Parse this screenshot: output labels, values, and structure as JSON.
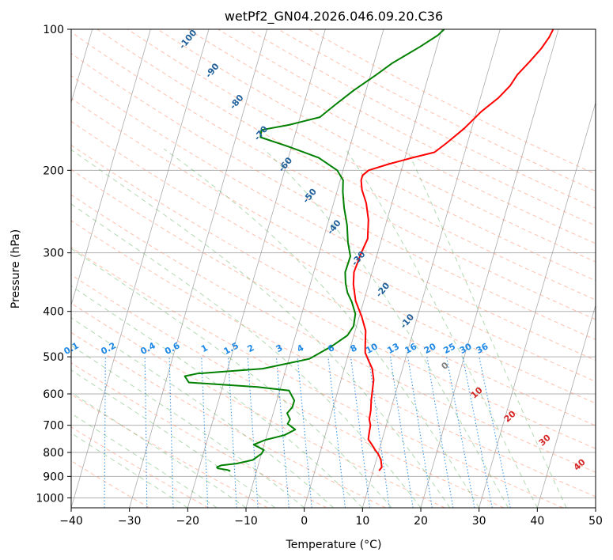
{
  "chart_data": {
    "type": "line",
    "title": "wetPf2_GN04.2026.046.09.20.C36",
    "xlabel": "Temperature (°C)",
    "ylabel": "Pressure (hPa)",
    "xlim": [
      -40,
      50
    ],
    "ylim": [
      1050,
      100
    ],
    "y_scale": "log",
    "grid": true,
    "x_ticks": [
      -40,
      -30,
      -20,
      -10,
      0,
      10,
      20,
      30,
      40,
      50
    ],
    "x_tick_labels": [
      "−40",
      "−30",
      "−20",
      "−10",
      "0",
      "10",
      "20",
      "30",
      "40",
      "50"
    ],
    "y_ticks": [
      100,
      200,
      300,
      400,
      500,
      600,
      700,
      800,
      900,
      1000
    ],
    "y_tick_labels": [
      "100",
      "200",
      "300",
      "400",
      "500",
      "600",
      "700",
      "800",
      "900",
      "1000"
    ],
    "series": [
      {
        "role": "temperature",
        "color": "#ff0000",
        "points": [
          [
            11,
            875
          ],
          [
            11.3,
            860
          ],
          [
            10.8,
            830
          ],
          [
            10,
            805
          ],
          [
            9.3,
            790
          ],
          [
            8.5,
            770
          ],
          [
            7.6,
            750
          ],
          [
            7.4,
            720
          ],
          [
            7.3,
            700
          ],
          [
            6.8,
            680
          ],
          [
            6.6,
            650
          ],
          [
            6.2,
            620
          ],
          [
            5.9,
            590
          ],
          [
            5.6,
            560
          ],
          [
            4.8,
            530
          ],
          [
            3.8,
            510
          ],
          [
            2.8,
            490
          ],
          [
            2.4,
            470
          ],
          [
            1.8,
            440
          ],
          [
            0.4,
            410
          ],
          [
            -1.4,
            380
          ],
          [
            -2.6,
            350
          ],
          [
            -3.1,
            330
          ],
          [
            -2.8,
            300
          ],
          [
            -2.4,
            280
          ],
          [
            -3.2,
            255
          ],
          [
            -4.4,
            235
          ],
          [
            -5.8,
            220
          ],
          [
            -6.4,
            210
          ],
          [
            -6.4,
            205
          ],
          [
            -5.6,
            200
          ],
          [
            -2.5,
            194
          ],
          [
            1.3,
            188
          ],
          [
            4.8,
            183
          ],
          [
            6.4,
            175
          ],
          [
            8.7,
            163
          ],
          [
            10.8,
            150
          ],
          [
            13.1,
            140
          ],
          [
            14.5,
            132
          ],
          [
            15.2,
            125
          ],
          [
            16.7,
            117
          ],
          [
            18,
            110
          ],
          [
            18.8,
            104
          ],
          [
            19.1,
            100
          ]
        ]
      },
      {
        "role": "dewpoint",
        "color": "#008000",
        "points": [
          [
            -14.5,
            877
          ],
          [
            -15,
            872
          ],
          [
            -16.8,
            865
          ],
          [
            -17,
            860
          ],
          [
            -16.3,
            852
          ],
          [
            -13.8,
            845
          ],
          [
            -11.2,
            830
          ],
          [
            -10,
            805
          ],
          [
            -9.8,
            790
          ],
          [
            -11.8,
            770
          ],
          [
            -10,
            752
          ],
          [
            -7,
            735
          ],
          [
            -5.4,
            715
          ],
          [
            -7,
            695
          ],
          [
            -6.8,
            680
          ],
          [
            -7.6,
            660
          ],
          [
            -7,
            640
          ],
          [
            -7,
            620
          ],
          [
            -8.4,
            590
          ],
          [
            -14,
            580
          ],
          [
            -26,
            567
          ],
          [
            -27,
            550
          ],
          [
            -25,
            543
          ],
          [
            -14,
            530
          ],
          [
            -6.5,
            505
          ],
          [
            -3.3,
            475
          ],
          [
            -1.1,
            450
          ],
          [
            -0.5,
            430
          ],
          [
            -0.8,
            405
          ],
          [
            -2,
            382
          ],
          [
            -3.2,
            365
          ],
          [
            -4,
            348
          ],
          [
            -4.6,
            330
          ],
          [
            -4.5,
            305
          ],
          [
            -5.6,
            285
          ],
          [
            -6.6,
            262
          ],
          [
            -8,
            240
          ],
          [
            -9,
            222
          ],
          [
            -9.5,
            210
          ],
          [
            -11,
            200
          ],
          [
            -14.8,
            188
          ],
          [
            -20.5,
            178
          ],
          [
            -25.8,
            170
          ],
          [
            -26,
            164
          ],
          [
            -21.5,
            160
          ],
          [
            -16.6,
            154
          ],
          [
            -14.6,
            145
          ],
          [
            -12.1,
            135
          ],
          [
            -9,
            125
          ],
          [
            -6.8,
            118
          ],
          [
            -2.9,
            109
          ],
          [
            -0.4,
            103
          ],
          [
            0.4,
            100
          ]
        ]
      }
    ],
    "dry_adiabat_labels": [
      "-100",
      "-90",
      "-80",
      "-70",
      "-60",
      "-50",
      "-40",
      "-30",
      "-20",
      "-10"
    ],
    "mixing_ratio_labels": [
      "0.1",
      "0.2",
      "0.4",
      "0.6",
      "1",
      "1.5",
      "2",
      "3",
      "4",
      "6",
      "8",
      "10",
      "13",
      "16",
      "20",
      "25",
      "30",
      "36"
    ],
    "moist_adiabat_labels": [
      "0",
      "10",
      "20",
      "30",
      "40"
    ],
    "colors": {
      "isotherm": "#888888",
      "dry_adiabat": "#ff8c69",
      "moist_adiabat": "#55aa55",
      "mixing_ratio": "#1e88e5",
      "dry_label": "#1f5f9a",
      "moist_label": "#d62728",
      "zero_label": "#808080"
    }
  }
}
